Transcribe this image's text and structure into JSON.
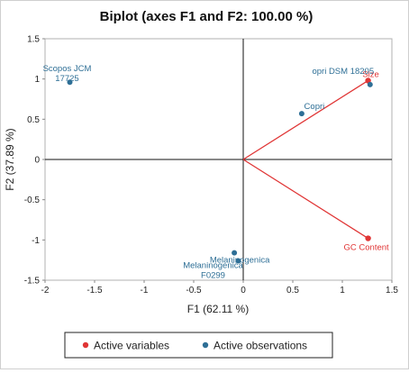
{
  "chart_data": {
    "type": "scatter",
    "title": "Biplot (axes F1 and F2: 100.00 %)",
    "xlabel": "F1 (62.11 %)",
    "ylabel": "F2 (37.89 %)",
    "xlim": [
      -2,
      1.5
    ],
    "ylim": [
      -1.5,
      1.5
    ],
    "xticks": [
      "-2",
      "-1.5",
      "-1",
      "-0.5",
      "0",
      "0.5",
      "1",
      "1.5"
    ],
    "yticks": [
      "1.5",
      "1",
      "0.5",
      "0",
      "-0.5",
      "-1",
      "-1.5"
    ],
    "grid": false,
    "legend_position": "bottom",
    "colors": {
      "variables": "#e03535",
      "observations": "#2e6f96"
    },
    "series": [
      {
        "name": "Active variables",
        "type": "vector",
        "points": [
          {
            "label": "Size",
            "x": 1.26,
            "y": 0.98
          },
          {
            "label": "GC Content",
            "x": 1.26,
            "y": -0.98
          }
        ]
      },
      {
        "name": "Active observations",
        "points": [
          {
            "label": "Scopos JCM 17725",
            "label_lines": [
              "Scopos JCM",
              "17725"
            ],
            "x": -1.75,
            "y": 0.96
          },
          {
            "label": "opri DSM 18205",
            "label_lines": [
              "opri DSM 18205"
            ],
            "x": 1.28,
            "y": 0.93
          },
          {
            "label": "Copri",
            "label_lines": [
              "Copri"
            ],
            "x": 0.59,
            "y": 0.57
          },
          {
            "label": "Melaninogenica",
            "label_lines": [
              "Melaninogenica"
            ],
            "x": -0.09,
            "y": -1.16
          },
          {
            "label": "Melaninogenica F0299",
            "label_lines": [
              "Melaninogenica",
              "F0299"
            ],
            "x": -0.05,
            "y": -1.26
          }
        ]
      }
    ]
  }
}
